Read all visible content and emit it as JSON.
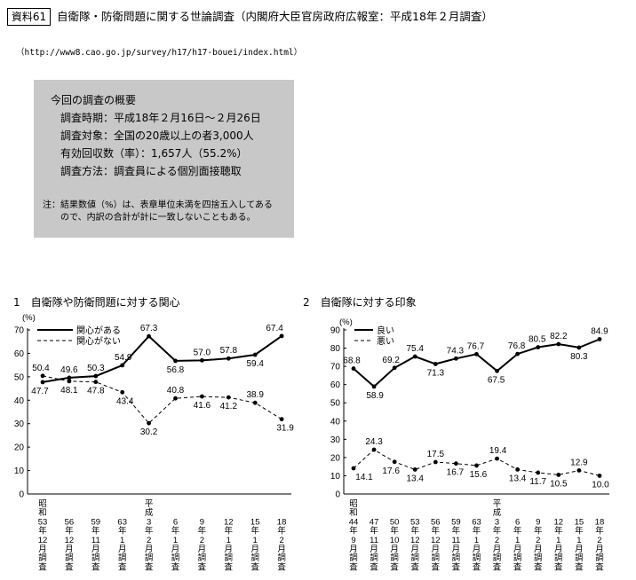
{
  "header": {
    "badge": "資料61",
    "title": "自衛隊・防衛問題に関する世論調査（内閣府大臣官房政府広報室：平成18年２月調査）",
    "url": "（http://www8.cao.go.jp/survey/h17/h17-bouei/index.html）"
  },
  "summary": {
    "heading": "今回の調査の概要",
    "items": [
      "調査時期：平成18年２月16日～２月26日",
      "調査対象：全国の20歳以上の者3,000人",
      "有効回収数（率）：1,657人（55.2%）",
      "調査方法：調査員による個別面接聴取"
    ],
    "note": [
      "注：結果数値（%）は、表章単位未満を四捨五入してある",
      "ので、内訳の合計が計に一致しないこともある。"
    ]
  },
  "chart_data": [
    {
      "type": "line",
      "title": "1　自衛隊や防衛問題に対する関心",
      "ylabel": "(%)",
      "xlabel": "",
      "ylim": [
        0,
        70
      ],
      "yticks": [
        0,
        10,
        20,
        30,
        40,
        50,
        60,
        70
      ],
      "grid": false,
      "legend": "top-left",
      "categories": [
        "昭和53年12月調査",
        "56年12月調査",
        "59年11月調査",
        "63年1月調査",
        "平成3年2月調査",
        "6年1月調査",
        "9年2月調査",
        "12年1月調査",
        "15年1月調査",
        "18年2月調査"
      ],
      "series": [
        {
          "name": "関心がある",
          "line_style": "solid",
          "values": [
            47.7,
            49.6,
            50.3,
            54.9,
            67.3,
            56.8,
            57.0,
            57.8,
            59.4,
            67.4
          ]
        },
        {
          "name": "関心がない",
          "line_style": "dashed",
          "values": [
            50.4,
            48.1,
            47.8,
            43.4,
            30.2,
            40.8,
            41.6,
            41.2,
            38.9,
            31.9
          ]
        }
      ]
    },
    {
      "type": "line",
      "title": "2　自衛隊に対する印象",
      "ylabel": "(%)",
      "xlabel": "",
      "ylim": [
        0,
        90
      ],
      "yticks": [
        0,
        10,
        20,
        30,
        40,
        50,
        60,
        70,
        80,
        90
      ],
      "grid": false,
      "legend": "top-left",
      "categories": [
        "昭和44年9月調査",
        "47年11月調査",
        "50年10月調査",
        "53年12月調査",
        "56年12月調査",
        "59年11月調査",
        "63年1月調査",
        "平成3年2月調査",
        "6年1月調査",
        "9年2月調査",
        "12年1月調査",
        "15年1月調査",
        "18年2月調査"
      ],
      "series": [
        {
          "name": "良い",
          "line_style": "solid",
          "values": [
            68.8,
            58.9,
            69.2,
            75.4,
            71.3,
            74.3,
            76.7,
            67.5,
            76.8,
            80.5,
            82.2,
            80.3,
            84.9
          ]
        },
        {
          "name": "悪い",
          "line_style": "dashed",
          "values": [
            14.1,
            24.3,
            17.6,
            13.4,
            17.5,
            16.7,
            15.6,
            19.4,
            13.4,
            11.7,
            10.5,
            12.9,
            10.0
          ]
        }
      ]
    }
  ]
}
